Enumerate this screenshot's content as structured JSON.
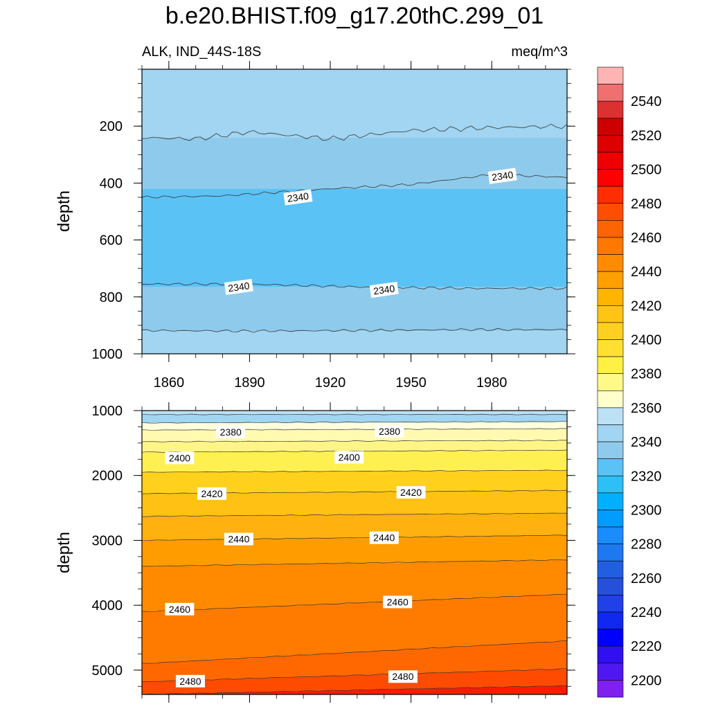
{
  "title": "b.e20.BHIST.f09_g17.20thC.299_01",
  "left_label": "ALK, IND_44S-18S",
  "right_label": "meq/m^3",
  "chart_data": [
    {
      "type": "heatmap",
      "panel": "upper",
      "ylabel": "depth",
      "xlim": [
        1850,
        2008
      ],
      "ylim": [
        0,
        1000
      ],
      "y_inverted": true,
      "x_ticks": [
        1860,
        1890,
        1920,
        1950,
        1980
      ],
      "y_ticks": [
        200,
        400,
        600,
        800,
        1000
      ],
      "bands": [
        {
          "y_top": 0,
          "y_bottom": 240,
          "level": "2350-2360",
          "color": "#A1D5F1"
        },
        {
          "y_top": 240,
          "y_bottom": 420,
          "level": "2340-2350",
          "color": "#8ECAEC"
        },
        {
          "y_top": 420,
          "y_bottom": 765,
          "level": "2330-2340",
          "color": "#5BC2F5"
        },
        {
          "y_top": 765,
          "y_bottom": 920,
          "level": "2340-2350",
          "color": "#8ECAEC"
        },
        {
          "y_top": 920,
          "y_bottom": 1000,
          "level": "2350-2360",
          "color": "#A1D5F1"
        }
      ],
      "contours": [
        {
          "level": 2350,
          "points": [
            [
              1850,
              240
            ],
            [
              1870,
              245
            ],
            [
              1890,
              220
            ],
            [
              1920,
              245
            ],
            [
              1950,
              215
            ],
            [
              1980,
              205
            ],
            [
              2008,
              200
            ]
          ]
        },
        {
          "level": 2340,
          "points": [
            [
              1850,
              450
            ],
            [
              1880,
              445
            ],
            [
              1920,
              420
            ],
            [
              1950,
              405
            ],
            [
              1980,
              370
            ],
            [
              2008,
              380
            ]
          ]
        },
        {
          "level": 2340,
          "points": [
            [
              1850,
              755
            ],
            [
              1890,
              755
            ],
            [
              1930,
              765
            ],
            [
              1970,
              770
            ],
            [
              2008,
              770
            ]
          ]
        },
        {
          "level": 2350,
          "points": [
            [
              1850,
              918
            ],
            [
              1890,
              920
            ],
            [
              1930,
              918
            ],
            [
              1970,
              915
            ],
            [
              2008,
              915
            ]
          ]
        }
      ],
      "contour_labels": [
        {
          "text": "2340",
          "x": 1908,
          "y": 450
        },
        {
          "text": "2340",
          "x": 1984,
          "y": 375
        },
        {
          "text": "2340",
          "x": 1886,
          "y": 765
        },
        {
          "text": "2340",
          "x": 1940,
          "y": 775
        }
      ]
    },
    {
      "type": "heatmap",
      "panel": "lower",
      "ylabel": "depth",
      "xlim": [
        1850,
        2008
      ],
      "ylim": [
        1000,
        5375
      ],
      "y_inverted": true,
      "y_ticks": [
        1000,
        2000,
        3000,
        4000,
        5000
      ],
      "levels": [
        {
          "y_left": 1000,
          "y_right": 1000,
          "color": "#BCE0F4"
        },
        {
          "y_left": 1060,
          "y_right": 1060,
          "color": "#A1D5F1"
        },
        {
          "y_left": 1190,
          "y_right": 1170,
          "color": "#FFFFDC"
        },
        {
          "y_left": 1300,
          "y_right": 1280,
          "color": "#FFFAB0"
        },
        {
          "y_left": 1480,
          "y_right": 1460,
          "color": "#FFF586"
        },
        {
          "y_left": 1640,
          "y_right": 1610,
          "color": "#FFF052"
        },
        {
          "y_left": 1950,
          "y_right": 1920,
          "color": "#FFD11C"
        },
        {
          "y_left": 2280,
          "y_right": 2230,
          "color": "#FFC113"
        },
        {
          "y_left": 2630,
          "y_right": 2580,
          "color": "#FFB10F"
        },
        {
          "y_left": 3000,
          "y_right": 2920,
          "color": "#FF9D00"
        },
        {
          "y_left": 3400,
          "y_right": 3300,
          "color": "#FF8A00"
        },
        {
          "y_left": 4100,
          "y_right": 3830,
          "color": "#FF7B00"
        },
        {
          "y_left": 4900,
          "y_right": 4550,
          "color": "#FF6800"
        },
        {
          "y_left": 5180,
          "y_right": 4980,
          "color": "#FF4B00"
        },
        {
          "y_left": 5375,
          "y_right": 5240,
          "color": "#FF1A00"
        }
      ],
      "contour_labels": [
        {
          "text": "2380",
          "x": 1883,
          "y": 1330
        },
        {
          "text": "2380",
          "x": 1942,
          "y": 1320
        },
        {
          "text": "2400",
          "x": 1864,
          "y": 1730
        },
        {
          "text": "2400",
          "x": 1927,
          "y": 1720
        },
        {
          "text": "2420",
          "x": 1876,
          "y": 2280
        },
        {
          "text": "2420",
          "x": 1950,
          "y": 2260
        },
        {
          "text": "2440",
          "x": 1886,
          "y": 2980
        },
        {
          "text": "2440",
          "x": 1940,
          "y": 2960
        },
        {
          "text": "2460",
          "x": 1864,
          "y": 4060
        },
        {
          "text": "2460",
          "x": 1945,
          "y": 3950
        },
        {
          "text": "2480",
          "x": 1868,
          "y": 5170
        },
        {
          "text": "2480",
          "x": 1947,
          "y": 5100
        }
      ]
    },
    {
      "type": "colorbar",
      "orientation": "vertical",
      "labels": [
        2540,
        2520,
        2500,
        2480,
        2460,
        2440,
        2420,
        2400,
        2380,
        2360,
        2340,
        2320,
        2300,
        2280,
        2260,
        2240,
        2220,
        2200
      ],
      "colors": [
        "#FFB3B3",
        "#EE7070",
        "#DD3030",
        "#CC0000",
        "#DD0000",
        "#EE0000",
        "#FF0000",
        "#FF2E00",
        "#FF4E00",
        "#FF6400",
        "#FF7800",
        "#FF8C00",
        "#FFA000",
        "#FFB400",
        "#FFC414",
        "#FFD022",
        "#FFE030",
        "#FFF044",
        "#FFFA88",
        "#FFFFCC",
        "#BCE0F4",
        "#A1D5F1",
        "#8ECAEC",
        "#5BC2F5",
        "#2DBFF5",
        "#00B0FF",
        "#009CFF",
        "#1A8CFF",
        "#1E78F0",
        "#2060E0",
        "#2650DA",
        "#2040E8",
        "#1028F0",
        "#0000FF",
        "#3010F0",
        "#5018F0",
        "#8020F0"
      ]
    }
  ]
}
